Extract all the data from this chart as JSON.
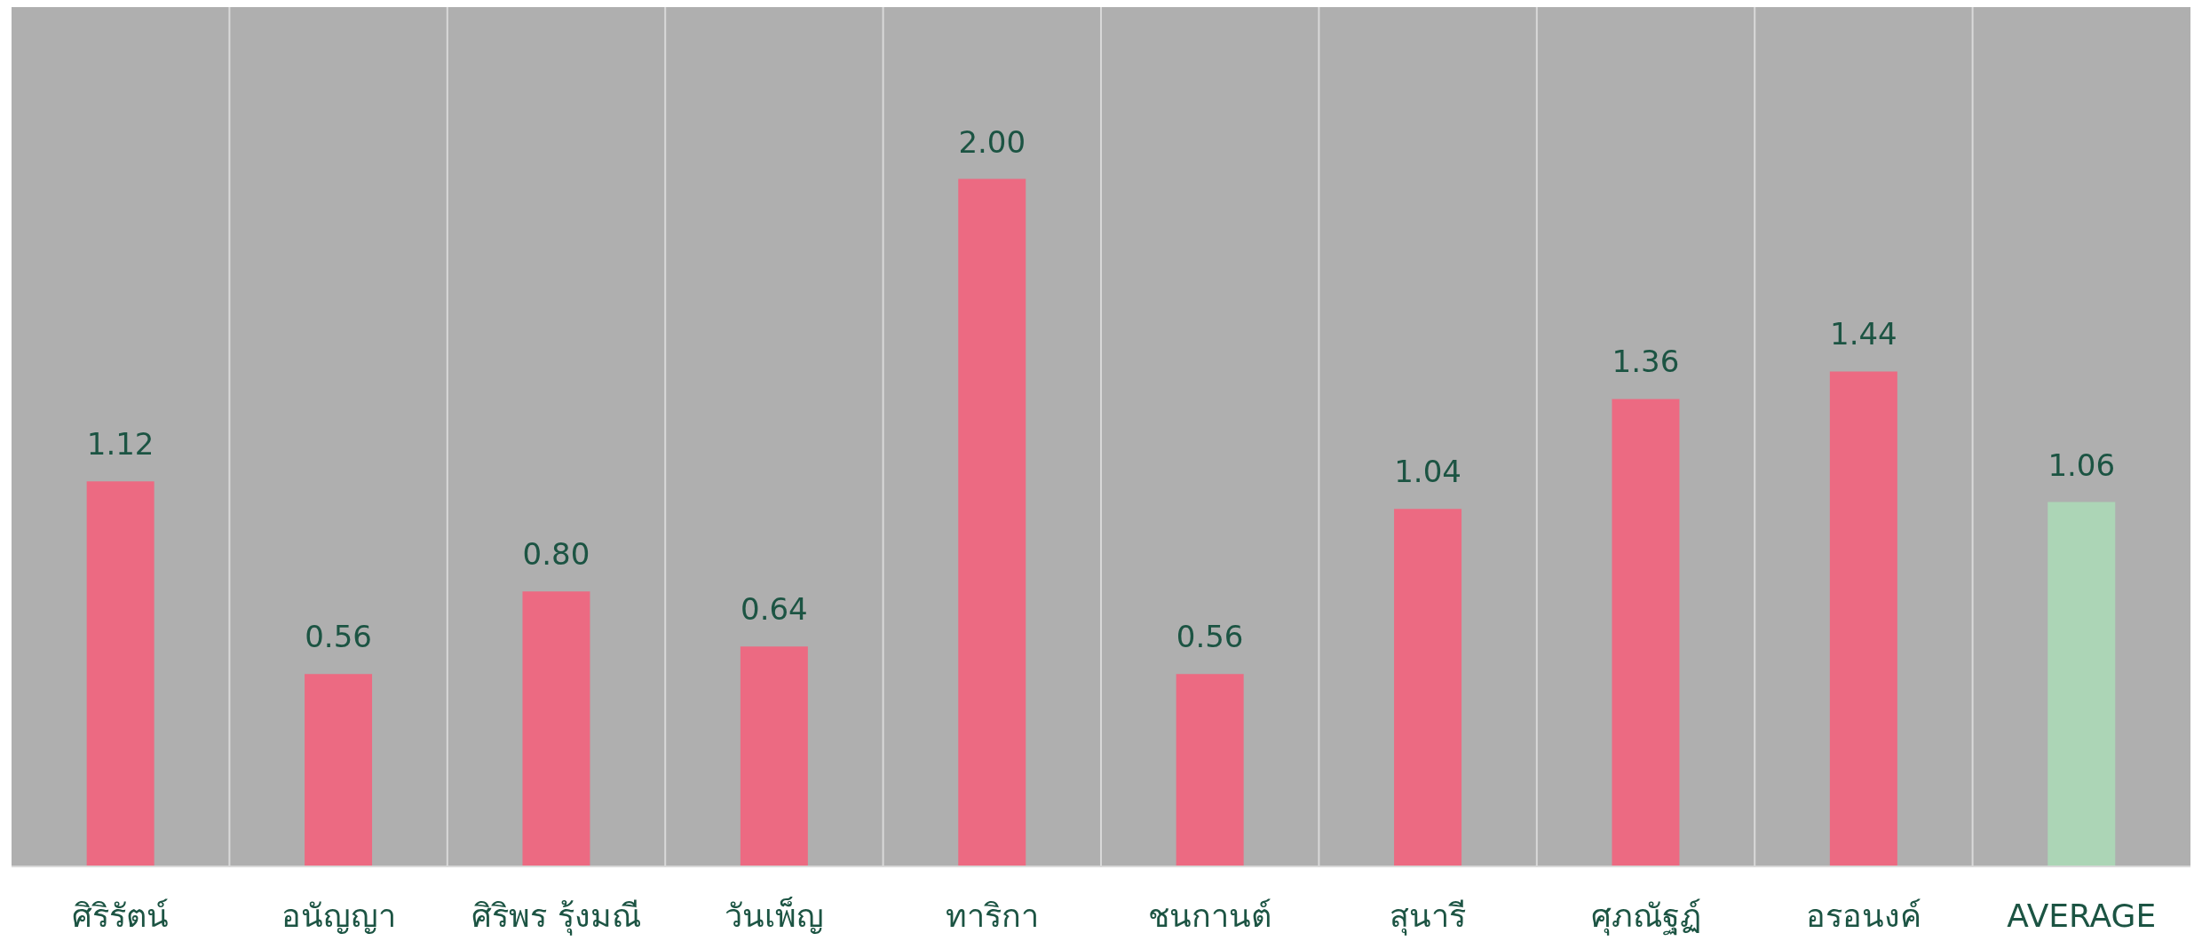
{
  "chart_data": {
    "type": "bar",
    "categories": [
      "ศิริรัตน์",
      "อนัญญา",
      "ศิริพร รุ้งมณี",
      "วันเพ็ญ",
      "ทาริกา",
      "ชนกานต์",
      "สุนารี",
      "ศุภณัฐฏ์",
      "อรอนงค์",
      "AVERAGE"
    ],
    "values": [
      1.12,
      0.56,
      0.8,
      0.64,
      2.0,
      0.56,
      1.04,
      1.36,
      1.44,
      1.06
    ],
    "colors": [
      "#ec6a82",
      "#ec6a82",
      "#ec6a82",
      "#ec6a82",
      "#ec6a82",
      "#ec6a82",
      "#ec6a82",
      "#ec6a82",
      "#ec6a82",
      "#acd5b6"
    ],
    "value_labels": [
      "1.12",
      "0.56",
      "0.80",
      "0.64",
      "2.00",
      "0.56",
      "1.04",
      "1.36",
      "1.44",
      "1.06"
    ],
    "grid": "x"
  }
}
